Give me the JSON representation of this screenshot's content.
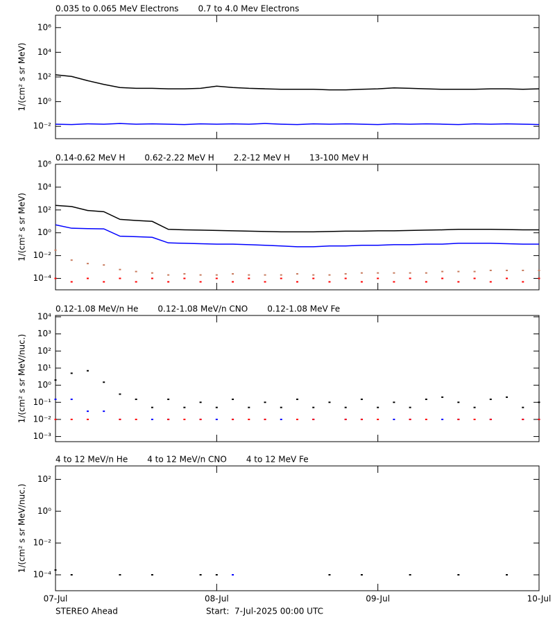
{
  "chart_data": [
    {
      "type": "line",
      "ylabel": "1/(cm² s sr MeV)",
      "ylog": true,
      "xlim": [
        0,
        3
      ],
      "xticks": [
        0,
        1,
        2,
        3
      ],
      "ylim": [
        0.001,
        10000000
      ],
      "yticks": [
        {
          "value": 1000000,
          "label": "10⁶"
        },
        {
          "value": 10000,
          "label": "10⁴"
        },
        {
          "value": 100,
          "label": "10²"
        },
        {
          "value": 1,
          "label": "10⁰"
        },
        {
          "value": 0.01,
          "label": "10⁻²"
        }
      ],
      "x": [
        0,
        0.1,
        0.2,
        0.3,
        0.4,
        0.5,
        0.6,
        0.7,
        0.8,
        0.9,
        1,
        1.1,
        1.2,
        1.3,
        1.4,
        1.5,
        1.6,
        1.7,
        1.8,
        1.9,
        2,
        2.1,
        2.2,
        2.3,
        2.4,
        2.5,
        2.6,
        2.7,
        2.8,
        2.9,
        3
      ],
      "series": [
        {
          "name": "0.035 to 0.065 MeV Electrons",
          "color": "#000000",
          "mode": "line",
          "values": [
            150,
            110,
            50,
            25,
            14,
            12,
            12,
            11,
            11,
            12,
            18,
            14,
            12,
            11,
            10,
            10,
            10,
            9,
            9,
            10,
            11,
            13,
            12,
            11,
            10,
            10,
            10,
            11,
            11,
            10,
            11
          ]
        },
        {
          "name": "0.7 to 4.0 Mev Electrons",
          "color": "#0000ff",
          "mode": "line",
          "values": [
            0.015,
            0.014,
            0.016,
            0.015,
            0.017,
            0.015,
            0.016,
            0.015,
            0.014,
            0.016,
            0.015,
            0.016,
            0.015,
            0.017,
            0.015,
            0.014,
            0.016,
            0.015,
            0.016,
            0.015,
            0.014,
            0.016,
            0.015,
            0.016,
            0.015,
            0.014,
            0.016,
            0.015,
            0.016,
            0.015,
            0.014
          ]
        }
      ]
    },
    {
      "type": "line",
      "ylabel": "1/(cm² s sr MeV)",
      "ylog": true,
      "xlim": [
        0,
        3
      ],
      "xticks": [
        0,
        1,
        2,
        3
      ],
      "ylim": [
        1e-05,
        1000000
      ],
      "yticks": [
        {
          "value": 1000000,
          "label": "10⁶"
        },
        {
          "value": 10000,
          "label": "10⁴"
        },
        {
          "value": 100,
          "label": "10²"
        },
        {
          "value": 1,
          "label": "10⁰"
        },
        {
          "value": 0.01,
          "label": "10⁻²"
        },
        {
          "value": 0.0001,
          "label": "10⁻⁴"
        }
      ],
      "x": [
        0,
        0.1,
        0.2,
        0.3,
        0.4,
        0.5,
        0.6,
        0.7,
        0.8,
        0.9,
        1,
        1.1,
        1.2,
        1.3,
        1.4,
        1.5,
        1.6,
        1.7,
        1.8,
        1.9,
        2,
        2.1,
        2.2,
        2.3,
        2.4,
        2.5,
        2.6,
        2.7,
        2.8,
        2.9,
        3
      ],
      "series": [
        {
          "name": "0.14-0.62 MeV H",
          "color": "#000000",
          "mode": "line",
          "values": [
            250,
            200,
            90,
            70,
            15,
            12,
            10,
            2,
            1.8,
            1.7,
            1.6,
            1.5,
            1.4,
            1.3,
            1.2,
            1.2,
            1.2,
            1.3,
            1.4,
            1.4,
            1.5,
            1.5,
            1.6,
            1.7,
            1.8,
            2,
            2,
            2,
            1.9,
            1.8,
            1.8
          ]
        },
        {
          "name": "0.62-2.22 MeV H",
          "color": "#0000ff",
          "mode": "line",
          "values": [
            5,
            2.5,
            2.3,
            2.2,
            0.5,
            0.45,
            0.4,
            0.13,
            0.12,
            0.11,
            0.1,
            0.1,
            0.09,
            0.08,
            0.07,
            0.06,
            0.06,
            0.07,
            0.07,
            0.08,
            0.08,
            0.09,
            0.09,
            0.1,
            0.1,
            0.12,
            0.12,
            0.12,
            0.11,
            0.1,
            0.1
          ]
        },
        {
          "name": "2.2-12 MeV H",
          "color": "#c87b5e",
          "mode": "points",
          "values": [
            0.03,
            0.004,
            0.002,
            0.0015,
            0.0006,
            0.0004,
            0.0003,
            0.0002,
            0.00025,
            0.0002,
            0.0002,
            0.00025,
            0.0002,
            0.0002,
            0.0002,
            0.00025,
            0.0002,
            0.0002,
            0.00025,
            0.0003,
            0.0003,
            0.0003,
            0.0003,
            0.0003,
            0.0004,
            0.0004,
            0.0004,
            0.0005,
            0.0005,
            0.0005,
            0.0005
          ]
        },
        {
          "name": "13-100 MeV H",
          "color": "#ff0000",
          "mode": "points",
          "values": [
            0.0001,
            5e-05,
            0.0001,
            5e-05,
            0.0001,
            5e-05,
            0.0001,
            5e-05,
            0.0001,
            5e-05,
            0.0001,
            5e-05,
            0.0001,
            5e-05,
            0.0001,
            5e-05,
            0.0001,
            5e-05,
            0.0001,
            5e-05,
            0.0001,
            5e-05,
            0.0001,
            5e-05,
            0.0001,
            5e-05,
            0.0001,
            5e-05,
            0.0001,
            5e-05,
            0.0001
          ]
        }
      ]
    },
    {
      "type": "scatter",
      "ylabel": "1/(cm² s sr MeV/nuc.)",
      "ylog": true,
      "xlim": [
        0,
        3
      ],
      "xticks": [
        0,
        1,
        2,
        3
      ],
      "ylim": [
        0.0005,
        12000
      ],
      "yticks": [
        {
          "value": 10000,
          "label": "10⁴"
        },
        {
          "value": 1000,
          "label": "10³"
        },
        {
          "value": 100,
          "label": "10²"
        },
        {
          "value": 10,
          "label": "10¹"
        },
        {
          "value": 1,
          "label": "10⁰"
        },
        {
          "value": 0.1,
          "label": "10⁻¹"
        },
        {
          "value": 0.01,
          "label": "10⁻²"
        },
        {
          "value": 0.001,
          "label": "10⁻³"
        }
      ],
      "x": [
        0,
        0.1,
        0.2,
        0.3,
        0.4,
        0.5,
        0.6,
        0.7,
        0.8,
        0.9,
        1,
        1.1,
        1.2,
        1.3,
        1.4,
        1.5,
        1.6,
        1.7,
        1.8,
        1.9,
        2,
        2.1,
        2.2,
        2.3,
        2.4,
        2.5,
        2.6,
        2.7,
        2.8,
        2.9,
        3
      ],
      "series": [
        {
          "name": "0.12-1.08 MeV/n He",
          "color": "#000000",
          "mode": "points",
          "values": [
            2,
            5,
            7,
            1.5,
            0.3,
            0.15,
            0.05,
            0.15,
            0.05,
            0.1,
            0.05,
            0.15,
            0.05,
            0.1,
            0.05,
            0.15,
            0.05,
            0.1,
            0.05,
            0.15,
            0.05,
            0.1,
            0.05,
            0.15,
            0.2,
            0.1,
            0.05,
            0.15,
            0.2,
            0.05,
            0.1
          ]
        },
        {
          "name": "0.12-1.08 MeV/n CNO",
          "color": "#0000ff",
          "mode": "points",
          "values": [
            0.15,
            0.15,
            0.03,
            0.03,
            0.01,
            null,
            0.01,
            0.01,
            null,
            0.01,
            0.01,
            0.01,
            null,
            0.01,
            0.01,
            null,
            0.01,
            null,
            0.01,
            0.01,
            null,
            0.01,
            0.01,
            null,
            0.01,
            0.01,
            null,
            0.01,
            null,
            0.01,
            0.01
          ]
        },
        {
          "name": "0.12-1.08 MeV Fe",
          "color": "#ff0000",
          "mode": "points",
          "values": [
            0.01,
            0.01,
            0.01,
            null,
            0.01,
            0.01,
            null,
            0.01,
            0.01,
            0.01,
            null,
            0.01,
            0.01,
            0.01,
            null,
            0.01,
            0.01,
            null,
            0.01,
            0.01,
            0.01,
            null,
            0.01,
            0.01,
            null,
            0.01,
            0.01,
            0.01,
            null,
            0.01,
            0.01
          ]
        }
      ]
    },
    {
      "type": "scatter",
      "ylabel": "1/(cm² s sr MeV/nuc.)",
      "ylog": true,
      "xlim": [
        0,
        3
      ],
      "xticks": [
        {
          "value": 0,
          "label": "07-Jul"
        },
        {
          "value": 1,
          "label": "08-Jul"
        },
        {
          "value": 2,
          "label": "09-Jul"
        },
        {
          "value": 3,
          "label": "10-Jul"
        }
      ],
      "ylim": [
        1e-05,
        700
      ],
      "yticks": [
        {
          "value": 100,
          "label": "10²"
        },
        {
          "value": 1,
          "label": "10⁰"
        },
        {
          "value": 0.01,
          "label": "10⁻²"
        },
        {
          "value": 0.0001,
          "label": "10⁻⁴"
        }
      ],
      "x": [
        0,
        0.1,
        0.2,
        0.3,
        0.4,
        0.5,
        0.6,
        0.7,
        0.8,
        0.9,
        1,
        1.1,
        1.2,
        1.3,
        1.4,
        1.5,
        1.6,
        1.7,
        1.8,
        1.9,
        2,
        2.1,
        2.2,
        2.3,
        2.4,
        2.5,
        2.6,
        2.7,
        2.8,
        2.9,
        3
      ],
      "series": [
        {
          "name": "4 to 12 MeV/n He",
          "color": "#000000",
          "mode": "points",
          "values": [
            0.0002,
            0.0001,
            null,
            null,
            0.0001,
            null,
            0.0001,
            null,
            null,
            0.0001,
            0.0001,
            null,
            null,
            null,
            null,
            null,
            null,
            0.0001,
            null,
            0.0001,
            null,
            null,
            0.0001,
            null,
            null,
            0.0001,
            null,
            null,
            0.0001,
            null,
            null
          ]
        },
        {
          "name": "4 to 12 MeV/n CNO",
          "color": "#0000ff",
          "mode": "points",
          "values": [
            null,
            null,
            null,
            null,
            null,
            null,
            null,
            null,
            null,
            null,
            null,
            0.0001,
            null,
            null,
            null,
            null,
            null,
            null,
            null,
            null,
            null,
            null,
            null,
            null,
            null,
            null,
            null,
            null,
            null,
            null,
            null
          ]
        },
        {
          "name": "4 to 12 MeV Fe",
          "color": "#ff0000",
          "mode": "points",
          "values": [
            null,
            null,
            null,
            null,
            null,
            null,
            null,
            null,
            null,
            null,
            null,
            null,
            null,
            null,
            null,
            null,
            null,
            null,
            null,
            null,
            null,
            null,
            null,
            null,
            null,
            null,
            null,
            null,
            null,
            null,
            null
          ]
        }
      ]
    }
  ],
  "footer": {
    "left": "STEREO Ahead",
    "right": "Start:  7-Jul-2025 00:00 UTC"
  }
}
